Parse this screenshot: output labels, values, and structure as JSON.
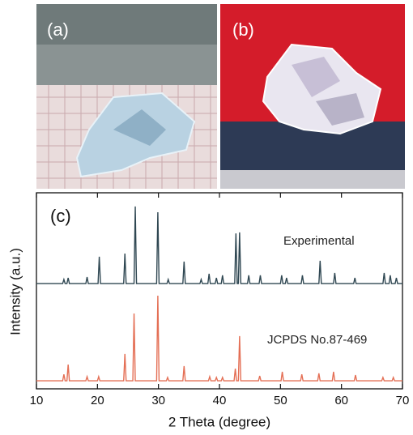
{
  "panels": {
    "a": "(a)",
    "b": "(b)"
  },
  "chart_data": {
    "type": "line",
    "panel_label": "(c)",
    "xlabel": "2 Theta (degree)",
    "ylabel": "Intensity (a.u.)",
    "xlim": [
      10,
      70
    ],
    "xticks": [
      10,
      20,
      30,
      40,
      50,
      60,
      70
    ],
    "ylim": [
      0,
      1
    ],
    "series": [
      {
        "name": "Experimental",
        "color": "#2f4752",
        "x": [
          10,
          14.3,
          14.5,
          14.7,
          15.0,
          15.2,
          15.4,
          18.1,
          18.3,
          18.5,
          20.1,
          20.3,
          20.5,
          24.3,
          24.5,
          24.7,
          26.0,
          26.2,
          26.4,
          29.7,
          29.9,
          30.1,
          31.4,
          31.6,
          31.8,
          34.0,
          34.2,
          34.4,
          36.8,
          37.0,
          37.2,
          38.1,
          38.3,
          38.5,
          39.3,
          39.5,
          39.7,
          40.3,
          40.5,
          40.7,
          42.5,
          42.7,
          42.9,
          43.1,
          43.3,
          43.5,
          44.6,
          44.8,
          45.0,
          46.5,
          46.7,
          46.9,
          50.0,
          50.2,
          50.4,
          50.8,
          51.0,
          51.2,
          53.4,
          53.6,
          53.8,
          56.3,
          56.5,
          56.7,
          58.7,
          58.9,
          59.1,
          62.0,
          62.2,
          62.4,
          66.8,
          67.0,
          67.2,
          67.8,
          68.0,
          68.2,
          68.8,
          69.0,
          69.2,
          70
        ],
        "values": [
          0.537,
          0.537,
          0.558,
          0.537,
          0.537,
          0.566,
          0.537,
          0.537,
          0.57,
          0.537,
          0.537,
          0.674,
          0.537,
          0.537,
          0.69,
          0.537,
          0.537,
          0.93,
          0.537,
          0.537,
          0.901,
          0.537,
          0.537,
          0.558,
          0.537,
          0.537,
          0.649,
          0.537,
          0.537,
          0.558,
          0.537,
          0.537,
          0.587,
          0.537,
          0.537,
          0.566,
          0.537,
          0.537,
          0.579,
          0.537,
          0.537,
          0.793,
          0.537,
          0.537,
          0.798,
          0.537,
          0.537,
          0.579,
          0.537,
          0.537,
          0.579,
          0.537,
          0.537,
          0.579,
          0.537,
          0.537,
          0.566,
          0.537,
          0.537,
          0.579,
          0.537,
          0.537,
          0.653,
          0.537,
          0.537,
          0.591,
          0.537,
          0.537,
          0.566,
          0.537,
          0.537,
          0.591,
          0.537,
          0.537,
          0.579,
          0.537,
          0.537,
          0.566,
          0.537,
          0.537
        ]
      },
      {
        "name": "JCPDS No.87-469",
        "color": "#e46f55",
        "x": [
          10,
          14.3,
          14.5,
          14.7,
          15.0,
          15.2,
          15.4,
          18.1,
          18.3,
          18.5,
          20.0,
          20.2,
          20.4,
          24.3,
          24.5,
          24.7,
          25.8,
          26.0,
          26.2,
          29.7,
          29.9,
          30.1,
          31.3,
          31.5,
          31.7,
          34.0,
          34.2,
          34.4,
          38.2,
          38.4,
          38.6,
          39.3,
          39.5,
          39.7,
          40.3,
          40.5,
          40.7,
          42.4,
          42.6,
          42.8,
          43.1,
          43.3,
          43.5,
          46.4,
          46.6,
          46.8,
          50.1,
          50.3,
          50.5,
          53.3,
          53.5,
          53.7,
          56.1,
          56.3,
          56.5,
          58.5,
          58.7,
          58.9,
          62.1,
          62.3,
          62.5,
          66.6,
          66.8,
          67.0,
          68.3,
          68.5,
          68.7,
          70
        ],
        "values": [
          0.041,
          0.041,
          0.074,
          0.041,
          0.041,
          0.124,
          0.041,
          0.041,
          0.062,
          0.041,
          0.041,
          0.062,
          0.041,
          0.041,
          0.178,
          0.041,
          0.041,
          0.384,
          0.041,
          0.041,
          0.475,
          0.041,
          0.041,
          0.058,
          0.041,
          0.041,
          0.116,
          0.041,
          0.041,
          0.062,
          0.041,
          0.041,
          0.058,
          0.041,
          0.041,
          0.058,
          0.041,
          0.041,
          0.103,
          0.041,
          0.041,
          0.269,
          0.041,
          0.041,
          0.066,
          0.041,
          0.041,
          0.087,
          0.041,
          0.041,
          0.074,
          0.041,
          0.041,
          0.079,
          0.041,
          0.041,
          0.087,
          0.041,
          0.041,
          0.07,
          0.041,
          0.041,
          0.058,
          0.041,
          0.041,
          0.058,
          0.041,
          0.041
        ]
      }
    ]
  }
}
